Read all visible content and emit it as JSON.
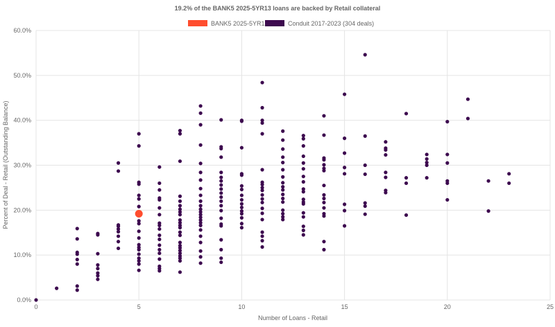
{
  "chart_data": {
    "type": "scatter",
    "title": "19.2% of the BANK5 2025-5YR13 loans are backed by Retail collateral",
    "xlabel": "Number of Loans - Retail",
    "ylabel": "Percent of Deal - Retail (Outstanding Balance)",
    "xlim": [
      0,
      25
    ],
    "ylim": [
      0,
      60
    ],
    "x_ticks": [
      "0",
      "5",
      "10",
      "15",
      "20",
      "25"
    ],
    "y_ticks": [
      "0.0%",
      "10.0%",
      "20.0%",
      "30.0%",
      "40.0%",
      "50.0%",
      "60.0%"
    ],
    "grid": true,
    "legend_position": "top-center",
    "series": [
      {
        "name": "BANK5 2025-5YR13",
        "color": "#ff4d2e",
        "points": [
          [
            5,
            19.2
          ]
        ]
      },
      {
        "name": "Conduit 2017-2023 (304 deals)",
        "color": "#3d0a4f",
        "points": [
          [
            0,
            0.0
          ],
          [
            1,
            2.6
          ],
          [
            2,
            2.2
          ],
          [
            2,
            3.1
          ],
          [
            2,
            8.0
          ],
          [
            2,
            9.0
          ],
          [
            2,
            10.2
          ],
          [
            2,
            10.6
          ],
          [
            2,
            13.6
          ],
          [
            2,
            15.9
          ],
          [
            3,
            4.6
          ],
          [
            3,
            5.4
          ],
          [
            3,
            6.0
          ],
          [
            3,
            7.0
          ],
          [
            3,
            7.8
          ],
          [
            3,
            10.3
          ],
          [
            3,
            14.5
          ],
          [
            3,
            14.8
          ],
          [
            4,
            11.5
          ],
          [
            4,
            13.0
          ],
          [
            4,
            14.2
          ],
          [
            4,
            15.2
          ],
          [
            4,
            15.8
          ],
          [
            4,
            16.4
          ],
          [
            4,
            16.7
          ],
          [
            4,
            28.7
          ],
          [
            4,
            30.5
          ],
          [
            5,
            6.6
          ],
          [
            5,
            8.0
          ],
          [
            5,
            8.7
          ],
          [
            5,
            9.3
          ],
          [
            5,
            10.2
          ],
          [
            5,
            11.2
          ],
          [
            5,
            11.7
          ],
          [
            5,
            12.3
          ],
          [
            5,
            13.8
          ],
          [
            5,
            15.3
          ],
          [
            5,
            17.0
          ],
          [
            5,
            17.6
          ],
          [
            5,
            20.8
          ],
          [
            5,
            22.5
          ],
          [
            5,
            23.3
          ],
          [
            5,
            25.8
          ],
          [
            5,
            26.2
          ],
          [
            5,
            34.3
          ],
          [
            5,
            37.0
          ],
          [
            6,
            6.5
          ],
          [
            6,
            7.0
          ],
          [
            6,
            7.5
          ],
          [
            6,
            9.1
          ],
          [
            6,
            10.4
          ],
          [
            6,
            11.2
          ],
          [
            6,
            12.2
          ],
          [
            6,
            13.5
          ],
          [
            6,
            14.4
          ],
          [
            6,
            15.8
          ],
          [
            6,
            16.6
          ],
          [
            6,
            17.1
          ],
          [
            6,
            19.0
          ],
          [
            6,
            20.5
          ],
          [
            6,
            22.3
          ],
          [
            6,
            22.7
          ],
          [
            6,
            24.5
          ],
          [
            6,
            26.0
          ],
          [
            6,
            29.6
          ],
          [
            7,
            6.2
          ],
          [
            7,
            8.7
          ],
          [
            7,
            9.3
          ],
          [
            7,
            9.8
          ],
          [
            7,
            10.4
          ],
          [
            7,
            11.0
          ],
          [
            7,
            11.6
          ],
          [
            7,
            12.1
          ],
          [
            7,
            12.8
          ],
          [
            7,
            14.4
          ],
          [
            7,
            15.1
          ],
          [
            7,
            16.1
          ],
          [
            7,
            16.6
          ],
          [
            7,
            17.2
          ],
          [
            7,
            17.8
          ],
          [
            7,
            19.0
          ],
          [
            7,
            19.6
          ],
          [
            7,
            20.2
          ],
          [
            7,
            21.0
          ],
          [
            7,
            22.0
          ],
          [
            7,
            23.1
          ],
          [
            7,
            30.9
          ],
          [
            7,
            37.0
          ],
          [
            7,
            37.7
          ],
          [
            8,
            8.2
          ],
          [
            8,
            9.6
          ],
          [
            8,
            10.9
          ],
          [
            8,
            12.8
          ],
          [
            8,
            14.2
          ],
          [
            8,
            15.6
          ],
          [
            8,
            16.6
          ],
          [
            8,
            17.2
          ],
          [
            8,
            17.8
          ],
          [
            8,
            18.4
          ],
          [
            8,
            19.0
          ],
          [
            8,
            19.6
          ],
          [
            8,
            20.2
          ],
          [
            8,
            21.0
          ],
          [
            8,
            22.0
          ],
          [
            8,
            23.3
          ],
          [
            8,
            24.8
          ],
          [
            8,
            26.7
          ],
          [
            8,
            28.4
          ],
          [
            8,
            30.4
          ],
          [
            8,
            34.5
          ],
          [
            8,
            39.0
          ],
          [
            8,
            41.6
          ],
          [
            8,
            43.2
          ],
          [
            9,
            8.4
          ],
          [
            9,
            9.3
          ],
          [
            9,
            11.2
          ],
          [
            9,
            13.4
          ],
          [
            9,
            16.5
          ],
          [
            9,
            16.9
          ],
          [
            9,
            18.2
          ],
          [
            9,
            19.9
          ],
          [
            9,
            21.0
          ],
          [
            9,
            22.0
          ],
          [
            9,
            22.9
          ],
          [
            9,
            23.8
          ],
          [
            9,
            24.7
          ],
          [
            9,
            25.6
          ],
          [
            9,
            26.5
          ],
          [
            9,
            27.3
          ],
          [
            9,
            28.4
          ],
          [
            9,
            31.8
          ],
          [
            9,
            33.7
          ],
          [
            9,
            34.1
          ],
          [
            9,
            40.1
          ],
          [
            10,
            16.1
          ],
          [
            10,
            17.0
          ],
          [
            10,
            18.3
          ],
          [
            10,
            19.2
          ],
          [
            10,
            19.8
          ],
          [
            10,
            20.6
          ],
          [
            10,
            21.4
          ],
          [
            10,
            22.3
          ],
          [
            10,
            23.3
          ],
          [
            10,
            24.6
          ],
          [
            10,
            25.4
          ],
          [
            10,
            27.8
          ],
          [
            10,
            28.1
          ],
          [
            10,
            33.9
          ],
          [
            10,
            39.8
          ],
          [
            10,
            40.0
          ],
          [
            11,
            11.8
          ],
          [
            11,
            13.2
          ],
          [
            11,
            14.2
          ],
          [
            11,
            15.1
          ],
          [
            11,
            17.9
          ],
          [
            11,
            19.3
          ],
          [
            11,
            20.4
          ],
          [
            11,
            21.7
          ],
          [
            11,
            22.5
          ],
          [
            11,
            23.4
          ],
          [
            11,
            24.4
          ],
          [
            11,
            25.0
          ],
          [
            11,
            25.7
          ],
          [
            11,
            26.2
          ],
          [
            11,
            29.0
          ],
          [
            11,
            37.0
          ],
          [
            11,
            39.4
          ],
          [
            11,
            40.0
          ],
          [
            11,
            42.8
          ],
          [
            11,
            48.4
          ],
          [
            12,
            17.9
          ],
          [
            12,
            18.5
          ],
          [
            12,
            19.2
          ],
          [
            12,
            20.0
          ],
          [
            12,
            21.8
          ],
          [
            12,
            22.6
          ],
          [
            12,
            23.5
          ],
          [
            12,
            24.5
          ],
          [
            12,
            25.2
          ],
          [
            12,
            26.1
          ],
          [
            12,
            27.4
          ],
          [
            12,
            29.0
          ],
          [
            12,
            30.6
          ],
          [
            12,
            31.8
          ],
          [
            12,
            33.6
          ],
          [
            12,
            35.6
          ],
          [
            12,
            37.6
          ],
          [
            13,
            14.5
          ],
          [
            13,
            15.5
          ],
          [
            13,
            16.4
          ],
          [
            13,
            18.5
          ],
          [
            13,
            19.4
          ],
          [
            13,
            21.4
          ],
          [
            13,
            21.8
          ],
          [
            13,
            22.4
          ],
          [
            13,
            24.1
          ],
          [
            13,
            24.7
          ],
          [
            13,
            26.3
          ],
          [
            13,
            27.5
          ],
          [
            13,
            29.2
          ],
          [
            13,
            30.5
          ],
          [
            13,
            32.0
          ],
          [
            13,
            34.3
          ],
          [
            13,
            35.9
          ],
          [
            13,
            36.6
          ],
          [
            14,
            11.2
          ],
          [
            14,
            13.0
          ],
          [
            14,
            18.7
          ],
          [
            14,
            19.2
          ],
          [
            14,
            20.5
          ],
          [
            14,
            21.7
          ],
          [
            14,
            22.6
          ],
          [
            14,
            23.4
          ],
          [
            14,
            25.5
          ],
          [
            14,
            28.8
          ],
          [
            14,
            29.3
          ],
          [
            14,
            30.1
          ],
          [
            14,
            31.2
          ],
          [
            14,
            31.6
          ],
          [
            14,
            36.7
          ],
          [
            14,
            41.0
          ],
          [
            15,
            16.5
          ],
          [
            15,
            19.9
          ],
          [
            15,
            21.3
          ],
          [
            15,
            28.1
          ],
          [
            15,
            29.5
          ],
          [
            15,
            32.7
          ],
          [
            15,
            36.0
          ],
          [
            15,
            45.8
          ],
          [
            16,
            19.1
          ],
          [
            16,
            20.9
          ],
          [
            16,
            21.6
          ],
          [
            16,
            28.0
          ],
          [
            16,
            30.0
          ],
          [
            16,
            36.5
          ],
          [
            16,
            54.6
          ],
          [
            17,
            23.9
          ],
          [
            17,
            24.4
          ],
          [
            17,
            27.3
          ],
          [
            17,
            28.4
          ],
          [
            17,
            32.3
          ],
          [
            17,
            33.4
          ],
          [
            17,
            33.8
          ],
          [
            17,
            35.2
          ],
          [
            18,
            18.9
          ],
          [
            18,
            26.0
          ],
          [
            18,
            27.2
          ],
          [
            18,
            41.5
          ],
          [
            19,
            27.2
          ],
          [
            19,
            30.0
          ],
          [
            19,
            30.6
          ],
          [
            19,
            31.4
          ],
          [
            19,
            32.4
          ],
          [
            20,
            22.3
          ],
          [
            20,
            26.0
          ],
          [
            20,
            26.5
          ],
          [
            20,
            30.5
          ],
          [
            20,
            32.4
          ],
          [
            20,
            39.7
          ],
          [
            21,
            40.4
          ],
          [
            21,
            44.7
          ],
          [
            22,
            19.8
          ],
          [
            22,
            26.5
          ],
          [
            23,
            26.0
          ],
          [
            23,
            28.1
          ]
        ]
      }
    ]
  }
}
